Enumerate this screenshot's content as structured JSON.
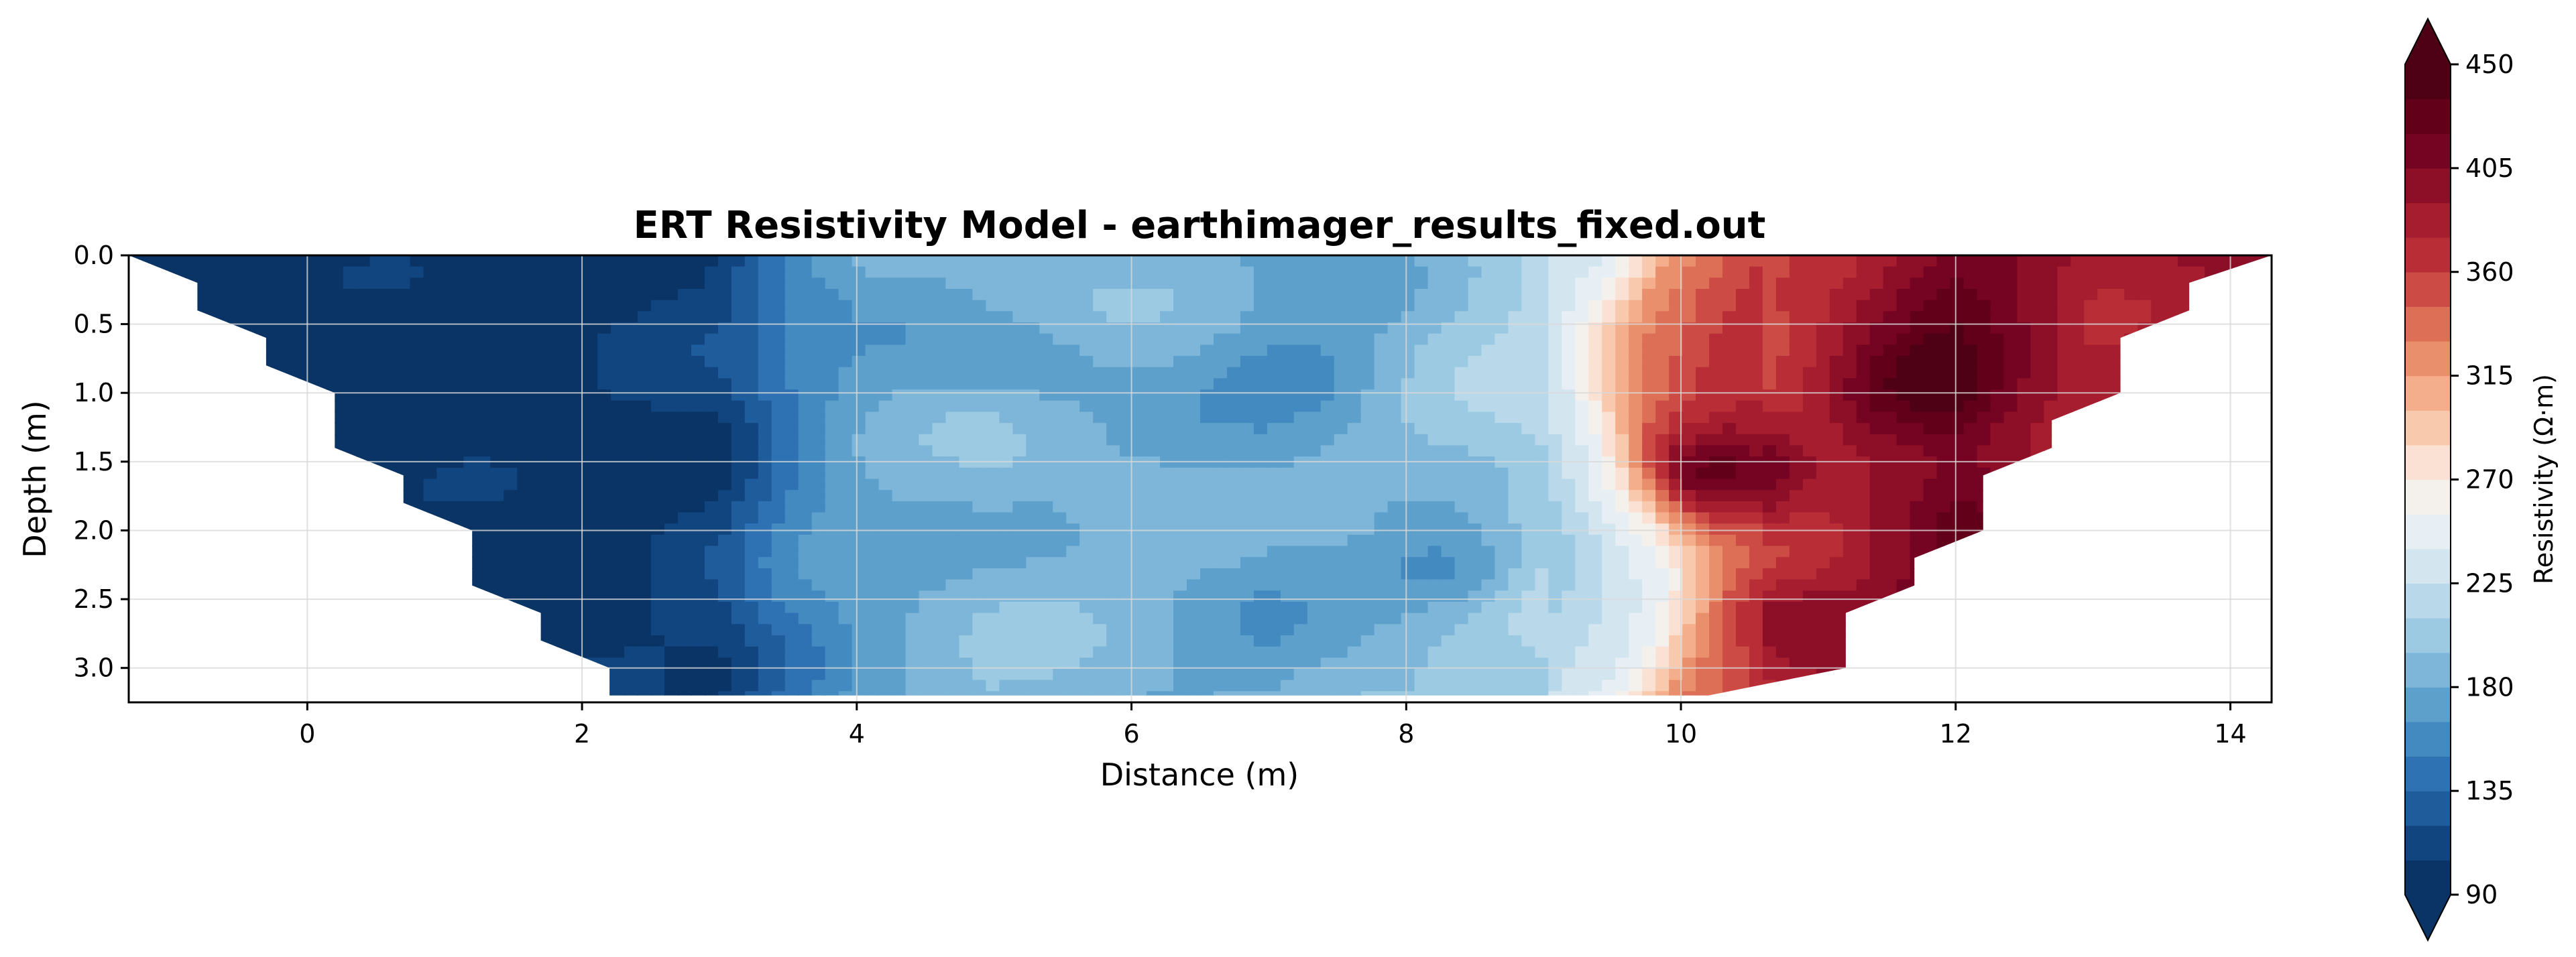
{
  "chart_data": {
    "type": "heatmap",
    "title": "ERT Resistivity Model - earthimager_results_fixed.out",
    "xlabel": "Distance (m)",
    "ylabel": "Depth (m)",
    "xlim": [
      -1.3,
      14.3
    ],
    "ylim": [
      3.25,
      0.0
    ],
    "y_inverted": true,
    "grid": true,
    "x_ticks": [
      "0",
      "2",
      "4",
      "6",
      "8",
      "10",
      "12",
      "14"
    ],
    "y_ticks": [
      "0.0",
      "0.5",
      "1.0",
      "1.5",
      "2.0",
      "2.5",
      "3.0"
    ],
    "colorbar": {
      "label": "Resistivity (Ω·m)",
      "colormap": "RdBu_r",
      "range": [
        90,
        450
      ],
      "extend": "both",
      "ticks": [
        "90",
        "135",
        "180",
        "225",
        "270",
        "315",
        "360",
        "405",
        "450"
      ],
      "levels": [
        90,
        105,
        120,
        135,
        150,
        165,
        180,
        195,
        210,
        225,
        240,
        255,
        270,
        285,
        300,
        315,
        330,
        345,
        360,
        375,
        390,
        405,
        420,
        435,
        450
      ]
    },
    "pseudosection_boundary": {
      "left_edge": [
        [
          -1.3,
          0.0
        ],
        [
          -0.8,
          0.2
        ],
        [
          -0.8,
          0.4
        ],
        [
          -0.3,
          0.6
        ],
        [
          -0.3,
          0.8
        ],
        [
          0.2,
          1.0
        ],
        [
          0.2,
          1.4
        ],
        [
          0.7,
          1.6
        ],
        [
          0.7,
          1.8
        ],
        [
          1.2,
          2.0
        ],
        [
          1.2,
          2.4
        ],
        [
          1.7,
          2.6
        ],
        [
          1.7,
          2.8
        ],
        [
          2.2,
          3.0
        ],
        [
          2.2,
          3.2
        ]
      ],
      "right_edge": [
        [
          14.3,
          0.0
        ],
        [
          13.7,
          0.2
        ],
        [
          13.7,
          0.4
        ],
        [
          13.2,
          0.6
        ],
        [
          13.2,
          1.0
        ],
        [
          12.7,
          1.2
        ],
        [
          12.7,
          1.4
        ],
        [
          12.2,
          1.6
        ],
        [
          12.2,
          2.0
        ],
        [
          11.7,
          2.2
        ],
        [
          11.7,
          2.4
        ],
        [
          11.2,
          2.6
        ],
        [
          11.2,
          3.0
        ],
        [
          10.2,
          3.2
        ]
      ]
    },
    "resistivity_profile": {
      "description_units": "Ω·m vs distance (m), representative columns",
      "x": [
        -1.0,
        0,
        1,
        2,
        3,
        3.5,
        4,
        5,
        6,
        7,
        8,
        9,
        9.5,
        10,
        10.5,
        11,
        12,
        13,
        14
      ],
      "values": [
        95,
        92,
        93,
        95,
        110,
        150,
        175,
        190,
        185,
        175,
        190,
        215,
        245,
        330,
        355,
        370,
        420,
        380,
        400
      ]
    },
    "features": [
      {
        "label": "",
        "x": 10.2,
        "y": 1.6,
        "value": 420
      },
      {
        "label": "",
        "x": 10.7,
        "y": 2.6,
        "value": 400
      },
      {
        "label": "",
        "x": 11.7,
        "y": 1.0,
        "value": 445
      },
      {
        "label": "",
        "x": 5.2,
        "y": 0.8,
        "value": 170
      },
      {
        "label": "",
        "x": 7.4,
        "y": 0.9,
        "value": 160
      },
      {
        "label": "",
        "x": 8.4,
        "y": 2.3,
        "value": 160
      }
    ]
  }
}
